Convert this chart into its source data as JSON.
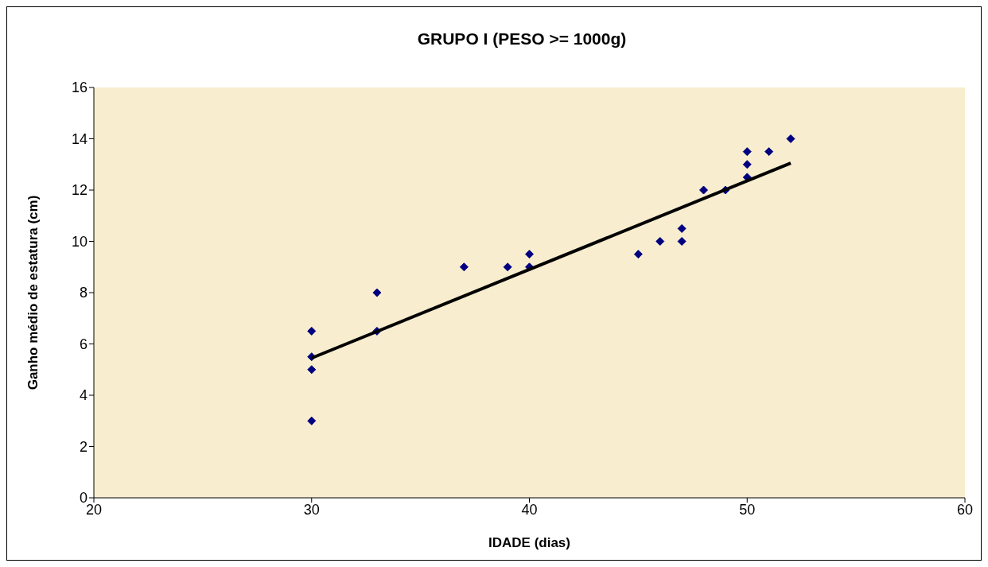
{
  "chart_data": {
    "type": "scatter",
    "title": "GRUPO I (PESO >= 1000g)",
    "xlabel": "IDADE (dias)",
    "ylabel": "Ganho médio de estatura (cm)",
    "xlim": [
      20,
      60
    ],
    "xticks": [
      20,
      30,
      40,
      50,
      60
    ],
    "ylim": [
      0,
      16
    ],
    "yticks": [
      0,
      2,
      4,
      6,
      8,
      10,
      12,
      14,
      16
    ],
    "grid": false,
    "marker": "diamond",
    "series": [
      {
        "color": "#000080",
        "x": [
          30,
          30,
          30,
          30,
          33,
          33,
          37,
          39,
          40,
          40,
          45,
          46,
          47,
          47,
          48,
          49,
          50,
          50,
          50,
          51,
          52
        ],
        "values": [
          6.5,
          5.5,
          5,
          3,
          8,
          6.5,
          9,
          9,
          9.5,
          9,
          9.5,
          10,
          10.5,
          10,
          12,
          12,
          13.5,
          13,
          12.5,
          13.5,
          14
        ]
      },
      {
        "type": "line",
        "color": "#000000",
        "x": [
          30,
          52
        ],
        "values": [
          5.45,
          13.05
        ],
        "marker": "none",
        "line_style": "solid"
      }
    ]
  }
}
